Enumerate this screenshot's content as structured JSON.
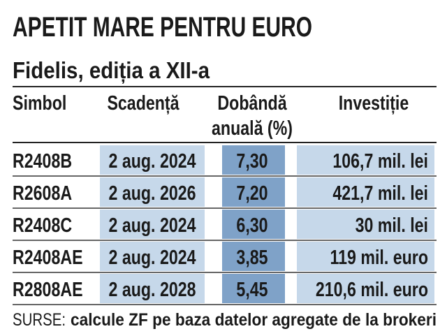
{
  "header": {
    "title": "APETIT MARE PENTRU EURO",
    "subtitle": "Fidelis, ediția a XII-a"
  },
  "table": {
    "columns": [
      "Simbol",
      "Scadență",
      [
        "Dobândă",
        "anuală (%)"
      ],
      "Investiție"
    ],
    "rows": [
      [
        "R2408B",
        "2 aug. 2024",
        "7,30",
        "106,7 mil. lei"
      ],
      [
        "R2608A",
        "2 aug. 2026",
        "7,20",
        "421,7 mil. lei"
      ],
      [
        "R2408C",
        "2 aug. 2024",
        "6,30",
        "30 mil. lei"
      ],
      [
        "R2408AE",
        "2 aug. 2024",
        "3,85",
        "119 mil. euro"
      ],
      [
        "R2808AE",
        "2 aug. 2028",
        "5,45",
        "210,6 mil. euro"
      ]
    ]
  },
  "footer": {
    "label": "SURSE:",
    "text": "calcule ZF pe baza datelor agregate de la brokeri"
  }
}
